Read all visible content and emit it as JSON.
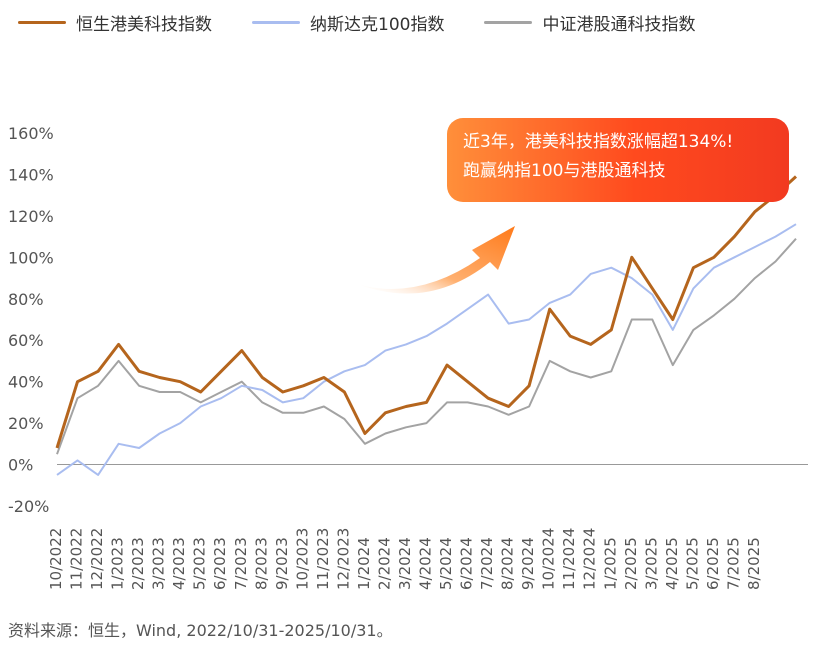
{
  "chart_data": {
    "type": "line",
    "legend_position": "top",
    "grid": false,
    "ylim": [
      -20,
      160
    ],
    "y_tick_labels": [
      "160%",
      "140%",
      "120%",
      "100%",
      "80%",
      "60%",
      "40%",
      "20%",
      "0%",
      "-20%"
    ],
    "y_ticks": [
      160,
      140,
      120,
      100,
      80,
      60,
      40,
      20,
      0,
      -20
    ],
    "x_tick_labels": [
      "10/2022",
      "11/2022",
      "12/2022",
      "1/2023",
      "2/2023",
      "3/2023",
      "4/2023",
      "5/2023",
      "6/2023",
      "7/2023",
      "8/2023",
      "9/2023",
      "10/2023",
      "11/2023",
      "12/2023",
      "1/2024",
      "2/2024",
      "3/2024",
      "4/2024",
      "5/2024",
      "6/2024",
      "7/2024",
      "8/2024",
      "9/2024",
      "10/2024",
      "11/2024",
      "12/2024",
      "1/2025",
      "2/2025",
      "3/2025",
      "4/2025",
      "5/2025",
      "6/2025",
      "7/2025",
      "8/2025"
    ],
    "x_months": [
      "2022-10",
      "2022-11",
      "2022-12",
      "2023-01",
      "2023-02",
      "2023-03",
      "2023-04",
      "2023-05",
      "2023-06",
      "2023-07",
      "2023-08",
      "2023-09",
      "2023-10",
      "2023-11",
      "2023-12",
      "2024-01",
      "2024-02",
      "2024-03",
      "2024-04",
      "2024-05",
      "2024-06",
      "2024-07",
      "2024-08",
      "2024-09",
      "2024-10",
      "2024-11",
      "2024-12",
      "2025-01",
      "2025-02",
      "2025-03",
      "2025-04",
      "2025-05",
      "2025-06",
      "2025-07",
      "2025-08",
      "2025-09",
      "2025-10"
    ],
    "series": [
      {
        "name": "恒生港美科技指数",
        "color": "#b5651d",
        "values": [
          8,
          40,
          45,
          58,
          45,
          42,
          40,
          35,
          45,
          55,
          42,
          35,
          38,
          42,
          35,
          15,
          25,
          28,
          30,
          48,
          40,
          32,
          28,
          38,
          75,
          62,
          58,
          65,
          100,
          85,
          70,
          95,
          100,
          110,
          122,
          130,
          139
        ]
      },
      {
        "name": "纳斯达克100指数",
        "color": "#a9bdf0",
        "values": [
          -5,
          2,
          -5,
          10,
          8,
          15,
          20,
          28,
          32,
          38,
          36,
          30,
          32,
          40,
          45,
          48,
          55,
          58,
          62,
          68,
          75,
          82,
          68,
          70,
          78,
          82,
          92,
          95,
          90,
          82,
          65,
          85,
          95,
          100,
          105,
          110,
          116
        ]
      },
      {
        "name": "中证港股通科技指数",
        "color": "#a3a3a3",
        "values": [
          5,
          32,
          38,
          50,
          38,
          35,
          35,
          30,
          35,
          40,
          30,
          25,
          25,
          28,
          22,
          10,
          15,
          18,
          20,
          30,
          30,
          28,
          24,
          28,
          50,
          45,
          42,
          45,
          70,
          70,
          48,
          65,
          72,
          80,
          90,
          98,
          109
        ]
      }
    ]
  },
  "legend": {
    "item1": "恒生港美科技指数",
    "item2": "纳斯达克100指数",
    "item3": "中证港股通科技指数"
  },
  "callout": {
    "line1": "近3年，港美科技指数涨幅超134%!",
    "line2": "跑赢纳指100与港股通科技"
  },
  "source": "资料来源：恒生，Wind, 2022/10/31-2025/10/31。",
  "colors": {
    "hs": "#b5651d",
    "ndx": "#a9bdf0",
    "csi": "#a3a3a3",
    "callout_start": "#ff8f3a",
    "callout_end": "#f23a20"
  }
}
